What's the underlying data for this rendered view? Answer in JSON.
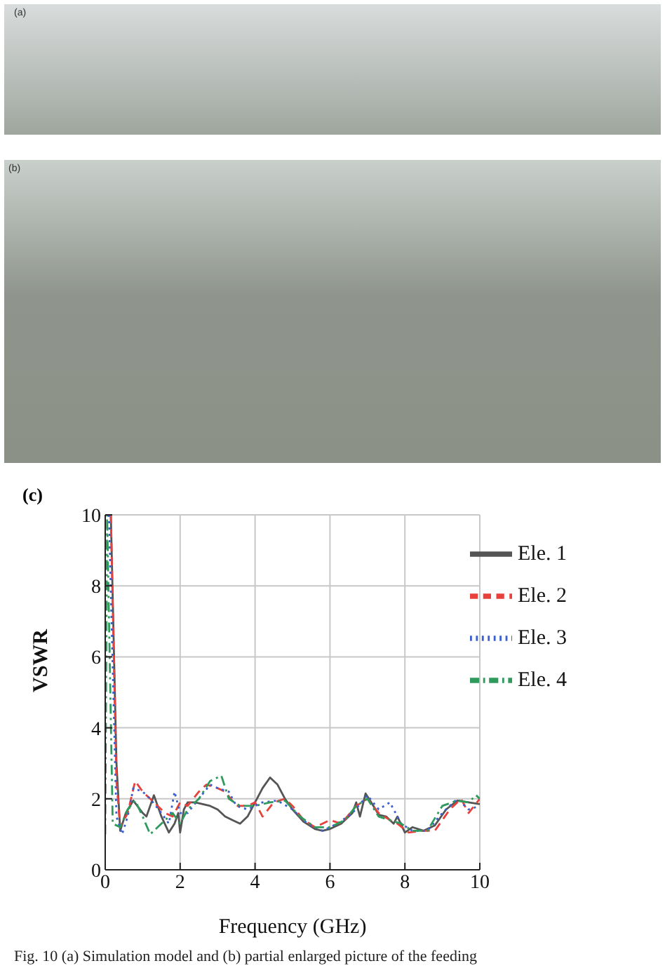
{
  "chart_data": {
    "type": "line",
    "xlabel": "Frequency (GHz)",
    "ylabel": "VSWR",
    "annotations": [
      "(a)",
      "(b)",
      "(c)",
      "Fig. 10   (a) Simulation model and (b) partial enlarged picture of the feeding"
    ],
    "xlim": [
      0,
      10
    ],
    "xticks": [
      0,
      2,
      4,
      6,
      8,
      10
    ],
    "ylim": [
      0,
      10
    ],
    "yticks": [
      0,
      2,
      4,
      6,
      8,
      10
    ],
    "grid": true,
    "legend": "top right",
    "marker": "none",
    "series": [
      {
        "name": "Ele. 1",
        "color": "#555555",
        "line_style": "solid",
        "x": [
          0.15,
          0.3,
          0.4,
          0.55,
          0.75,
          1.0,
          1.1,
          1.3,
          1.5,
          1.7,
          1.85,
          1.95,
          2.0,
          2.1,
          2.2,
          2.4,
          2.8,
          3.0,
          3.2,
          3.4,
          3.6,
          3.8,
          4.0,
          4.2,
          4.4,
          4.6,
          4.8,
          5.0,
          5.3,
          5.6,
          5.8,
          6.0,
          6.3,
          6.6,
          6.7,
          6.8,
          6.95,
          7.1,
          7.3,
          7.5,
          7.7,
          7.8,
          8.0,
          8.2,
          8.5,
          8.8,
          9.1,
          9.4,
          9.7,
          10
        ],
        "values": [
          10,
          3,
          1.1,
          1.6,
          1.95,
          1.6,
          1.5,
          2.1,
          1.5,
          1.05,
          1.3,
          1.6,
          1.05,
          1.7,
          1.9,
          1.9,
          1.8,
          1.7,
          1.5,
          1.4,
          1.3,
          1.5,
          1.9,
          2.3,
          2.6,
          2.4,
          2.0,
          1.7,
          1.35,
          1.15,
          1.1,
          1.15,
          1.3,
          1.6,
          1.9,
          1.5,
          2.15,
          1.9,
          1.55,
          1.5,
          1.3,
          1.5,
          1.05,
          1.2,
          1.1,
          1.25,
          1.7,
          1.95,
          1.9,
          1.85
        ]
      },
      {
        "name": "Ele. 2",
        "color": "#e8413c",
        "line_style": "dashed",
        "x": [
          0.15,
          0.3,
          0.4,
          0.6,
          0.8,
          1.0,
          1.2,
          1.4,
          1.6,
          1.8,
          2.0,
          2.2,
          2.5,
          2.7,
          3.0,
          3.2,
          3.5,
          3.8,
          4.0,
          4.2,
          4.5,
          4.8,
          5.0,
          5.3,
          5.6,
          6.0,
          6.3,
          6.7,
          7.0,
          7.3,
          7.6,
          7.8,
          8.1,
          8.5,
          8.8,
          9.2,
          9.5,
          9.7,
          10
        ],
        "values": [
          10,
          2.5,
          1.2,
          1.6,
          2.5,
          2.2,
          2.0,
          1.8,
          1.6,
          1.5,
          1.9,
          1.8,
          2.2,
          2.4,
          2.3,
          2.2,
          1.8,
          1.8,
          1.9,
          1.5,
          1.9,
          2.0,
          1.8,
          1.4,
          1.2,
          1.4,
          1.3,
          1.8,
          2.0,
          1.6,
          1.4,
          1.3,
          1.05,
          1.1,
          1.1,
          1.7,
          2.0,
          1.6,
          2.0
        ]
      },
      {
        "name": "Ele. 3",
        "color": "#3a5fd0",
        "line_style": "dotted",
        "x": [
          0.1,
          0.3,
          0.45,
          0.6,
          0.75,
          1.0,
          1.2,
          1.5,
          1.7,
          1.85,
          2.0,
          2.2,
          2.5,
          2.8,
          3.0,
          3.3,
          3.5,
          3.8,
          4.2,
          4.6,
          5.0,
          5.4,
          5.8,
          6.2,
          6.6,
          7.0,
          7.3,
          7.6,
          7.9,
          8.2,
          8.6,
          9.0,
          9.4,
          9.7,
          10
        ],
        "values": [
          10,
          1.5,
          1.0,
          1.5,
          2.3,
          2.2,
          2.0,
          1.6,
          1.3,
          2.2,
          1.6,
          1.6,
          2.0,
          2.4,
          2.3,
          2.2,
          1.8,
          1.7,
          1.9,
          1.95,
          1.7,
          1.3,
          1.1,
          1.3,
          1.6,
          2.1,
          1.7,
          1.9,
          1.3,
          1.1,
          1.1,
          1.6,
          2.0,
          1.7,
          1.8
        ]
      },
      {
        "name": "Ele. 4",
        "color": "#2e9a5c",
        "line_style": "dashdot",
        "x": [
          0,
          0.05,
          0.2,
          0.4,
          0.6,
          0.8,
          1.0,
          1.2,
          1.4,
          1.6,
          1.8,
          2.0,
          2.2,
          2.5,
          2.8,
          3.1,
          3.3,
          3.6,
          4.0,
          4.4,
          4.8,
          5.2,
          5.6,
          6.0,
          6.4,
          6.7,
          7.0,
          7.3,
          7.6,
          7.9,
          8.2,
          8.6,
          9.0,
          9.4,
          9.7,
          9.9,
          10
        ],
        "values": [
          1,
          10,
          1.3,
          1.2,
          1.7,
          1.95,
          1.5,
          1.0,
          1.2,
          1.4,
          1.6,
          1.3,
          1.7,
          2.0,
          2.5,
          2.65,
          2.0,
          1.8,
          1.8,
          1.9,
          1.95,
          1.5,
          1.2,
          1.2,
          1.4,
          1.8,
          2.0,
          1.5,
          1.4,
          1.3,
          1.1,
          1.1,
          1.8,
          1.95,
          1.9,
          2.1,
          2.0
        ]
      }
    ]
  }
}
